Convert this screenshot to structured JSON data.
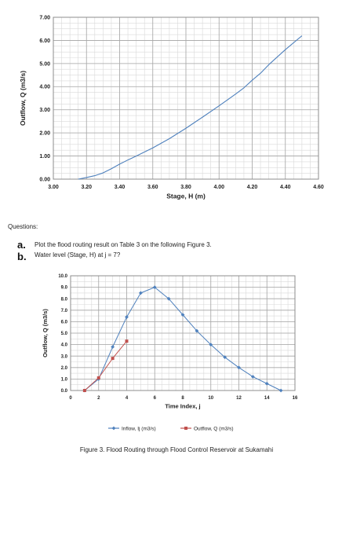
{
  "questions": {
    "heading": "Questions:",
    "items": [
      {
        "letter": "a.",
        "text": "Plot the flood routing result on Table 3 on the following Figure 3."
      },
      {
        "letter": "b.",
        "text": "Water level (Stage, H) at j = 7?"
      }
    ]
  },
  "chart_data": [
    {
      "type": "line",
      "xlabel": "Stage, H (m)",
      "ylabel": "Outflow, Q (m3/s)",
      "xlim": [
        3.0,
        4.6
      ],
      "ylim": [
        0.0,
        7.0
      ],
      "x_ticks": [
        "3.00",
        "3.20",
        "3.40",
        "3.60",
        "3.80",
        "4.00",
        "4.20",
        "4.40",
        "4.60"
      ],
      "y_ticks": [
        "0.00",
        "1.00",
        "2.00",
        "3.00",
        "4.00",
        "5.00",
        "6.00",
        "7.00"
      ],
      "grid": true,
      "series": [
        {
          "color": "#4f81bd",
          "x": [
            3.15,
            3.2,
            3.25,
            3.3,
            3.35,
            3.4,
            3.45,
            3.5,
            3.6,
            3.7,
            3.8,
            3.9,
            4.0,
            4.1,
            4.15,
            4.2,
            4.25,
            4.3,
            4.4,
            4.5
          ],
          "y": [
            0.0,
            0.07,
            0.15,
            0.27,
            0.45,
            0.65,
            0.83,
            1.0,
            1.35,
            1.75,
            2.2,
            2.68,
            3.17,
            3.68,
            3.95,
            4.28,
            4.58,
            4.95,
            5.6,
            6.2
          ]
        }
      ]
    },
    {
      "type": "line",
      "xlabel": "Time Index, j",
      "ylabel": "Outflow, Q (m3/s)",
      "xlim": [
        0,
        16
      ],
      "ylim": [
        0.0,
        10.0
      ],
      "x_ticks": [
        "0",
        "2",
        "4",
        "6",
        "8",
        "10",
        "12",
        "14",
        "16"
      ],
      "y_ticks": [
        "0.0",
        "1.0",
        "2.0",
        "3.0",
        "4.0",
        "5.0",
        "6.0",
        "7.0",
        "8.0",
        "9.0",
        "10.0"
      ],
      "grid": true,
      "legend": "bottom",
      "series": [
        {
          "name": "Inflow, Ij (m3/s)",
          "color": "#4f81bd",
          "x": [
            1,
            2,
            3,
            4,
            5,
            6,
            7,
            8,
            9,
            10,
            11,
            12,
            13,
            14,
            15
          ],
          "y": [
            0.0,
            1.0,
            3.8,
            6.4,
            8.5,
            9.0,
            8.0,
            6.6,
            5.2,
            4.0,
            2.9,
            2.0,
            1.2,
            0.6,
            0.0
          ]
        },
        {
          "name": "Outflow, Q (m3/s)",
          "color": "#c0504d",
          "x": [
            1,
            2,
            3,
            4
          ],
          "y": [
            0.0,
            1.1,
            2.8,
            4.3
          ]
        }
      ]
    }
  ],
  "caption": "Figure 3. Flood Routing through Flood Control Reservoir at Sukamahi"
}
